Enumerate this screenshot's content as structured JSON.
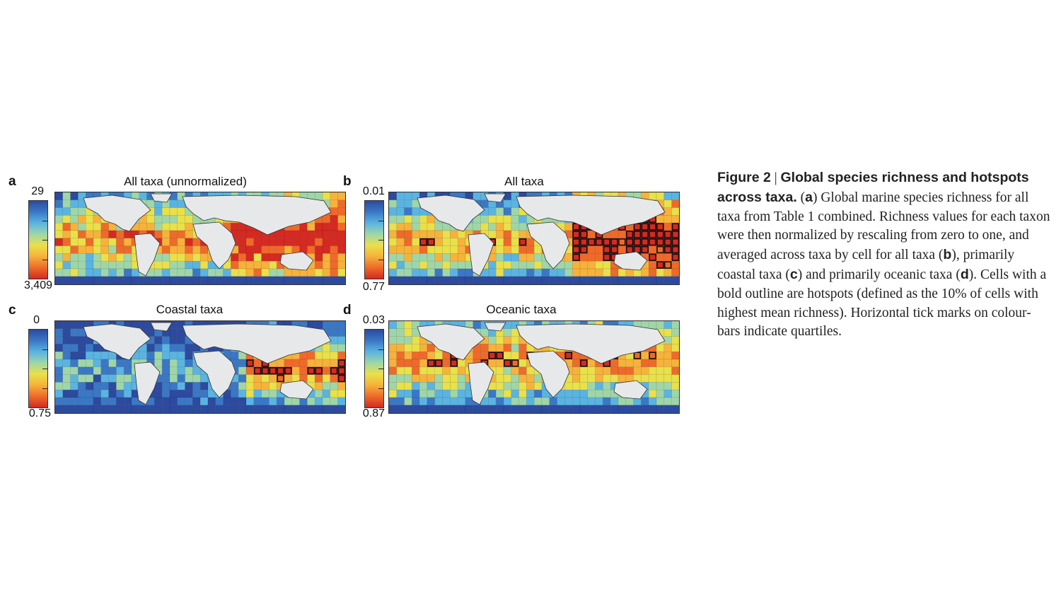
{
  "panels": [
    {
      "id": "a",
      "letter": "a",
      "title": "All taxa (unnormalized)",
      "cbar_top": "29",
      "cbar_bottom": "3,409",
      "hotspots": false
    },
    {
      "id": "b",
      "letter": "b",
      "title": "All taxa",
      "cbar_top": "0.01",
      "cbar_bottom": "0.77",
      "hotspots": true
    },
    {
      "id": "c",
      "letter": "c",
      "title": "Coastal taxa",
      "cbar_top": "0",
      "cbar_bottom": "0.75",
      "hotspots": true
    },
    {
      "id": "d",
      "letter": "d",
      "title": "Oceanic taxa",
      "cbar_top": "0.03",
      "cbar_bottom": "0.87",
      "hotspots": true
    }
  ],
  "colormap": [
    "#2c4aa0",
    "#3a78c6",
    "#5ab4e2",
    "#9fd6a8",
    "#e9e04a",
    "#f6b23a",
    "#ee6a2a",
    "#d42a22"
  ],
  "caption": {
    "figure_label": "Figure 2",
    "separator": "|",
    "bold_title": "Global species richness and hotspots across taxa.",
    "seg1": "(",
    "a": "a",
    "seg2": ") Global marine species richness for all taxa from Table 1 combined. Richness values for each taxon were then normalized by rescaling from zero to one, and averaged across taxa by cell for all taxa (",
    "b": "b",
    "seg3": "), primarily coastal taxa (",
    "c": "c",
    "seg4": ") and primarily oceanic taxa (",
    "d": "d",
    "seg5": "). Cells with a bold outline are hotspots (defined as the 10% of cells with highest mean richness). Horizontal tick marks on colour-bars indicate quartiles."
  }
}
